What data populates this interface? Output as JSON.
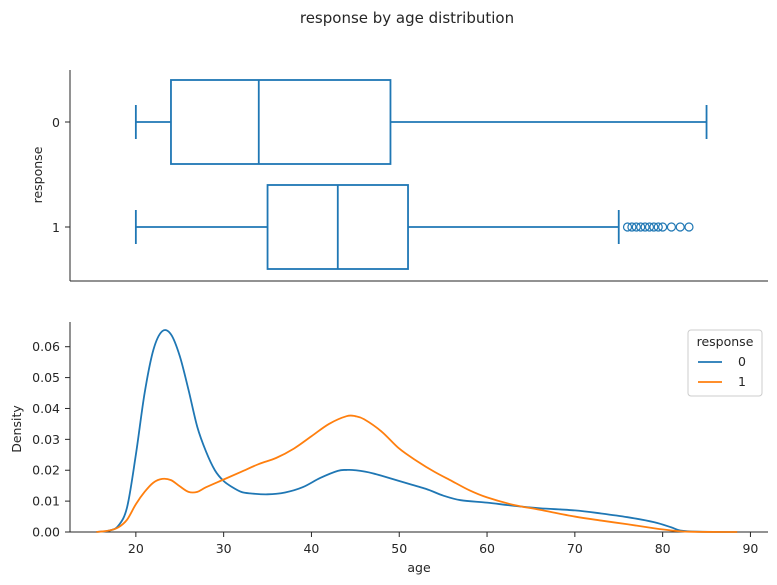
{
  "chart_data": [
    {
      "type": "box",
      "title": "response by age distribution",
      "ylabel": "response",
      "xlabel": "",
      "xlim": [
        12.5,
        92
      ],
      "orientation": "horizontal",
      "color": "#1f77b4",
      "grid": false,
      "categories": [
        "0",
        "1"
      ],
      "boxes": [
        {
          "category": "0",
          "whisker_low": 20,
          "q1": 24,
          "median": 34,
          "q3": 49,
          "whisker_high": 85,
          "outliers": []
        },
        {
          "category": "1",
          "whisker_low": 20,
          "q1": 35,
          "median": 43,
          "q3": 51,
          "whisker_high": 75,
          "outliers": [
            76,
            76.5,
            77,
            77.5,
            78,
            78.5,
            79,
            79.5,
            80,
            81,
            82,
            83
          ]
        }
      ]
    },
    {
      "type": "line",
      "subtype": "kde",
      "xlabel": "age",
      "ylabel": "Density",
      "xlim": [
        12.5,
        92
      ],
      "ylim": [
        0,
        0.068
      ],
      "xticks": [
        20,
        30,
        40,
        50,
        60,
        70,
        80,
        90
      ],
      "yticks": [
        "0.00",
        "0.01",
        "0.02",
        "0.03",
        "0.04",
        "0.05",
        "0.06"
      ],
      "grid": false,
      "legend": {
        "title": "response",
        "position": "top-right"
      },
      "series": [
        {
          "name": "0",
          "color": "#1f77b4",
          "points": [
            [
              15.5,
              0
            ],
            [
              17,
              0.0005
            ],
            [
              18,
              0.002
            ],
            [
              19,
              0.008
            ],
            [
              20,
              0.025
            ],
            [
              21,
              0.045
            ],
            [
              22,
              0.059
            ],
            [
              23,
              0.065
            ],
            [
              24,
              0.064
            ],
            [
              25,
              0.057
            ],
            [
              26,
              0.046
            ],
            [
              27,
              0.034
            ],
            [
              28,
              0.026
            ],
            [
              29,
              0.02
            ],
            [
              30,
              0.0165
            ],
            [
              31,
              0.0145
            ],
            [
              32,
              0.013
            ],
            [
              33,
              0.0125
            ],
            [
              35,
              0.0122
            ],
            [
              37,
              0.0128
            ],
            [
              39,
              0.0145
            ],
            [
              41,
              0.0175
            ],
            [
              43,
              0.0198
            ],
            [
              44,
              0.0201
            ],
            [
              45,
              0.02
            ],
            [
              47,
              0.019
            ],
            [
              50,
              0.0165
            ],
            [
              53,
              0.014
            ],
            [
              55,
              0.0118
            ],
            [
              57,
              0.0103
            ],
            [
              60,
              0.0095
            ],
            [
              63,
              0.0085
            ],
            [
              66,
              0.0077
            ],
            [
              70,
              0.007
            ],
            [
              73,
              0.006
            ],
            [
              76,
              0.0048
            ],
            [
              79,
              0.0032
            ],
            [
              81,
              0.0015
            ],
            [
              82,
              0.0005
            ],
            [
              84,
              0.0001
            ],
            [
              88.5,
              0
            ]
          ]
        },
        {
          "name": "1",
          "color": "#ff7f0e",
          "points": [
            [
              15.5,
              0
            ],
            [
              17,
              0.0005
            ],
            [
              18,
              0.0015
            ],
            [
              19,
              0.004
            ],
            [
              20,
              0.009
            ],
            [
              21,
              0.013
            ],
            [
              22,
              0.016
            ],
            [
              23,
              0.0172
            ],
            [
              24,
              0.0168
            ],
            [
              25,
              0.0148
            ],
            [
              26,
              0.013
            ],
            [
              27,
              0.013
            ],
            [
              28,
              0.0145
            ],
            [
              30,
              0.017
            ],
            [
              32,
              0.0195
            ],
            [
              34,
              0.022
            ],
            [
              36,
              0.024
            ],
            [
              38,
              0.027
            ],
            [
              40,
              0.031
            ],
            [
              42,
              0.035
            ],
            [
              44,
              0.0375
            ],
            [
              45,
              0.0375
            ],
            [
              46,
              0.0365
            ],
            [
              48,
              0.0325
            ],
            [
              50,
              0.027
            ],
            [
              52,
              0.023
            ],
            [
              54,
              0.0195
            ],
            [
              56,
              0.0165
            ],
            [
              58,
              0.0135
            ],
            [
              60,
              0.0112
            ],
            [
              63,
              0.0088
            ],
            [
              66,
              0.0072
            ],
            [
              70,
              0.005
            ],
            [
              73,
              0.0037
            ],
            [
              76,
              0.0025
            ],
            [
              79,
              0.0012
            ],
            [
              81,
              0.0005
            ],
            [
              83,
              0.0001
            ],
            [
              88.5,
              0
            ]
          ]
        }
      ]
    }
  ]
}
